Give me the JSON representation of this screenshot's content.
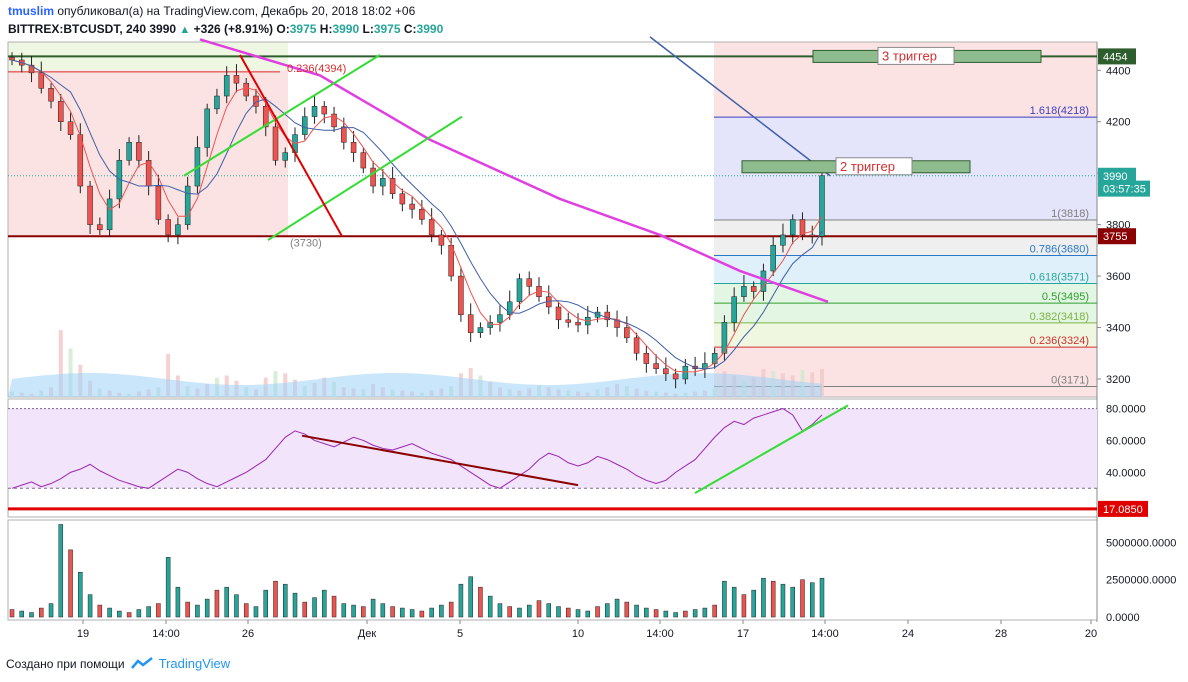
{
  "header": {
    "user": "tmuslim",
    "published": "опубликовал(а) на TradingView.com, Декабрь 20, 2018 18:02 +06",
    "symbol": "BITTREX:BTCUSDT, 240",
    "last": "3990",
    "change": "+326 (+8.91%)",
    "o_label": "O:",
    "o": "3975",
    "h_label": "H:",
    "h": "3990",
    "l_label": "L:",
    "l": "3975",
    "c_label": "C:",
    "c": "3990"
  },
  "footer": {
    "text": "Создано при помощи",
    "brand": "TradingView"
  },
  "colors": {
    "up": "#26a69a",
    "down": "#ef5350",
    "ma_pink": "#e040e0",
    "ma_blue": "#3f5fa8",
    "rsi": "#9c27b0",
    "green_line": "#33dd33",
    "dark_red": "#8b0000",
    "red": "#e00000"
  },
  "chart_data": [
    {
      "type": "candlestick",
      "title": "",
      "x_ticks": [
        "19",
        "14:00",
        "26",
        "Дек",
        "5",
        "10",
        "14:00",
        "17",
        "14:00",
        "24",
        "28",
        "20"
      ],
      "y_ticks": [
        3200,
        3400,
        3600,
        3800,
        4000,
        4200,
        4400
      ],
      "ylim": [
        3130,
        4510
      ],
      "price_labels": [
        {
          "text": "4454",
          "value": 4454,
          "color": "#2e5e2e"
        },
        {
          "text": "3990",
          "value": 3990,
          "color": "#26a69a"
        },
        {
          "text": "03:57:35",
          "value": 3940,
          "color": "#26a69a"
        },
        {
          "text": "3755",
          "value": 3755,
          "color": "#8b0000"
        }
      ],
      "fib_right": [
        {
          "label": "1.618(4218)",
          "value": 4218,
          "color": "#3f3fbf"
        },
        {
          "label": "1(3818)",
          "value": 3818,
          "color": "#808080"
        },
        {
          "label": "0.786(3680)",
          "value": 3680,
          "color": "#2979c9"
        },
        {
          "label": "0.618(3571)",
          "value": 3571,
          "color": "#26a69a"
        },
        {
          "label": "0.5(3495)",
          "value": 3495,
          "color": "#2ea02e"
        },
        {
          "label": "0.382(3418)",
          "value": 3418,
          "color": "#7cb342"
        },
        {
          "label": "0.236(3324)",
          "value": 3324,
          "color": "#d32f2f"
        },
        {
          "label": "0(3171)",
          "value": 3171,
          "color": "#808080"
        }
      ],
      "fib_left": [
        {
          "label": "0.236(4394)",
          "value": 4394,
          "color": "#d32f2f"
        },
        {
          "label": "(3730)",
          "value": 3730,
          "color": "#808080"
        }
      ],
      "annotations": [
        {
          "text": "3 триггер",
          "value": 4454
        },
        {
          "text": "2 триггер",
          "value": 4025
        }
      ],
      "series": [
        {
          "name": "close",
          "closes": [
            4440,
            4420,
            4390,
            4330,
            4280,
            4200,
            4150,
            3950,
            3800,
            3780,
            3900,
            4050,
            4120,
            4050,
            3950,
            3820,
            3760,
            3800,
            3950,
            4100,
            4250,
            4300,
            4380,
            4350,
            4300,
            4260,
            4180,
            4050,
            4080,
            4150,
            4220,
            4260,
            4230,
            4180,
            4120,
            4080,
            4020,
            3950,
            3980,
            3920,
            3880,
            3860,
            3820,
            3760,
            3720,
            3600,
            3450,
            3380,
            3400,
            3420,
            3450,
            3500,
            3590,
            3560,
            3520,
            3480,
            3430,
            3420,
            3410,
            3440,
            3460,
            3430,
            3400,
            3360,
            3300,
            3260,
            3240,
            3220,
            3200,
            3250,
            3240,
            3260,
            3300,
            3420,
            3520,
            3560,
            3540,
            3620,
            3720,
            3760,
            3820,
            3760,
            3755,
            3990
          ]
        }
      ]
    },
    {
      "type": "line",
      "title": "",
      "series_name": "",
      "y_ticks": [
        40,
        60,
        80
      ],
      "y_tick_labels": [
        "40.0000",
        "60.0000",
        "80.0000"
      ],
      "ylim": [
        12,
        86
      ],
      "level_label": {
        "text": "17.0850",
        "value": 17.085
      },
      "values": [
        30,
        32,
        34,
        31,
        33,
        36,
        40,
        42,
        45,
        41,
        38,
        35,
        33,
        31,
        30,
        34,
        38,
        42,
        40,
        36,
        33,
        31,
        34,
        37,
        40,
        44,
        48,
        55,
        62,
        66,
        64,
        60,
        58,
        56,
        59,
        62,
        60,
        57,
        55,
        54,
        56,
        58,
        55,
        52,
        50,
        48,
        44,
        40,
        36,
        32,
        30,
        34,
        38,
        42,
        48,
        52,
        50,
        46,
        44,
        46,
        50,
        48,
        45,
        42,
        38,
        35,
        33,
        35,
        40,
        44,
        48,
        55,
        62,
        68,
        72,
        70,
        74,
        76,
        78,
        80,
        76,
        66,
        70,
        76
      ]
    },
    {
      "type": "bar",
      "title": "",
      "series_name": "",
      "y_ticks": [
        0,
        2500000,
        5000000
      ],
      "y_tick_labels": [
        "0.0000",
        "2500000.0000",
        "5000000.0000"
      ],
      "ylim": [
        -200000,
        6500000
      ],
      "values": [
        500000,
        400000,
        300000,
        600000,
        900000,
        6200000,
        4500000,
        3000000,
        1500000,
        800000,
        600000,
        400000,
        300000,
        500000,
        700000,
        900000,
        4000000,
        2000000,
        1000000,
        800000,
        1200000,
        1800000,
        2000000,
        1500000,
        900000,
        700000,
        1800000,
        2400000,
        2200000,
        1600000,
        1000000,
        1300000,
        1800000,
        1400000,
        900000,
        800000,
        700000,
        1200000,
        900000,
        700000,
        600000,
        500000,
        400000,
        600000,
        800000,
        1000000,
        2200000,
        2700000,
        2000000,
        1400000,
        900000,
        700000,
        600000,
        800000,
        1100000,
        900000,
        700000,
        600000,
        500000,
        400000,
        700000,
        900000,
        1200000,
        1000000,
        800000,
        600000,
        500000,
        400000,
        300000,
        400000,
        500000,
        600000,
        800000,
        2400000,
        2000000,
        1500000,
        1800000,
        2600000,
        2400000,
        2200000,
        2000000,
        2500000,
        2300000,
        2600000
      ]
    }
  ]
}
